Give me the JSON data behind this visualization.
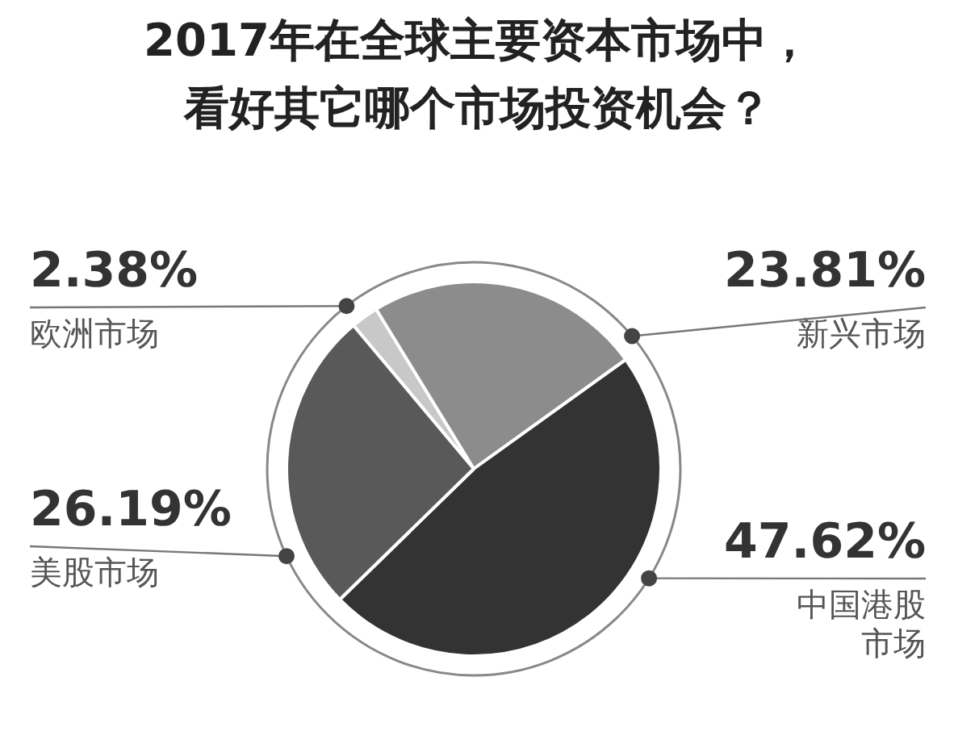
{
  "chart_data": {
    "type": "pie",
    "title": "2017年在全球主要资本市场中，看好其它哪个市场投资机会？",
    "categories": [
      "欧洲市场",
      "新兴市场",
      "中国港股市场",
      "美股市场"
    ],
    "values": [
      2.38,
      23.81,
      47.62,
      26.19
    ],
    "value_labels": [
      "2.38%",
      "23.81%",
      "47.62%",
      "26.19%"
    ],
    "colors": [
      "#c8c8c8",
      "#8c8c8c",
      "#333333",
      "#595959"
    ]
  }
}
